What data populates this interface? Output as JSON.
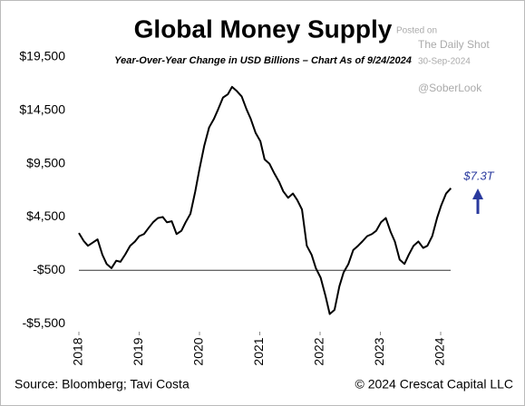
{
  "chart_data": {
    "type": "line",
    "title": "Global Money Supply",
    "subtitle": "Year-Over-Year Change in USD Billions – Chart As of 9/24/2024",
    "source": "Source: Bloomberg; Tavi Costa",
    "copyright": "© 2024 Crescat Capital LLC",
    "watermark": [
      "Posted on",
      "The Daily Shot",
      "30-Sep-2024",
      "@SoberLook"
    ],
    "annotation": {
      "text": "$7.3T",
      "color": "#2a3a9e"
    },
    "hline": -500,
    "xlim": [
      2018,
      2024.75
    ],
    "xticks": [
      2018,
      2019,
      2020,
      2021,
      2022,
      2023,
      2024
    ],
    "ylim": [
      -6000,
      20000
    ],
    "yticks": [
      {
        "value": -5500,
        "label": "-$5,500"
      },
      {
        "value": -500,
        "label": "-$500"
      },
      {
        "value": 4500,
        "label": "$4,500"
      },
      {
        "value": 9500,
        "label": "$9,500"
      },
      {
        "value": 14500,
        "label": "$14,500"
      },
      {
        "value": 19500,
        "label": "$19,500"
      }
    ],
    "grid": false,
    "x": [
      2018.0,
      2018.08,
      2018.15,
      2018.23,
      2018.31,
      2018.39,
      2018.46,
      2018.54,
      2018.62,
      2018.69,
      2018.77,
      2018.85,
      2018.93,
      2019.0,
      2019.08,
      2019.16,
      2019.23,
      2019.31,
      2019.39,
      2019.46,
      2019.54,
      2019.62,
      2019.7,
      2019.77,
      2019.85,
      2019.93,
      2020.0,
      2020.08,
      2020.16,
      2020.24,
      2020.31,
      2020.39,
      2020.47,
      2020.54,
      2020.62,
      2020.7,
      2020.78,
      2020.85,
      2020.93,
      2021.01,
      2021.08,
      2021.16,
      2021.24,
      2021.32,
      2021.39,
      2021.47,
      2021.55,
      2021.62,
      2021.7,
      2021.78,
      2021.86,
      2021.93,
      2022.01,
      2022.09,
      2022.16,
      2022.24,
      2022.32,
      2022.39,
      2022.47,
      2022.55,
      2022.63,
      2022.7,
      2022.78,
      2022.86,
      2022.93,
      2023.01,
      2023.09,
      2023.17,
      2023.24,
      2023.32,
      2023.4,
      2023.47,
      2023.55,
      2023.63,
      2023.71,
      2023.78,
      2023.86,
      2023.94,
      2024.01,
      2024.09,
      2024.17
    ],
    "series": [
      {
        "color": "#000000",
        "values": [
          3000,
          2250,
          1800,
          2100,
          2400,
          950,
          100,
          -300,
          400,
          300,
          1000,
          1800,
          2200,
          2700,
          2900,
          3500,
          4000,
          4400,
          4500,
          4000,
          4100,
          2900,
          3200,
          4000,
          4800,
          6900,
          9000,
          11200,
          12900,
          13700,
          14600,
          15700,
          16000,
          16700,
          16300,
          15800,
          14600,
          13700,
          12400,
          11600,
          9900,
          9500,
          8600,
          7800,
          6900,
          6300,
          6700,
          6100,
          5200,
          1800,
          950,
          -300,
          -1200,
          -2900,
          -4600,
          -4200,
          -2000,
          -700,
          100,
          1400,
          1800,
          2200,
          2700,
          2900,
          3200,
          4000,
          4400,
          3100,
          2200,
          500,
          100,
          950,
          1800,
          2200,
          1600,
          1800,
          2700,
          4400,
          5600,
          6700,
          7200
        ]
      }
    ]
  }
}
